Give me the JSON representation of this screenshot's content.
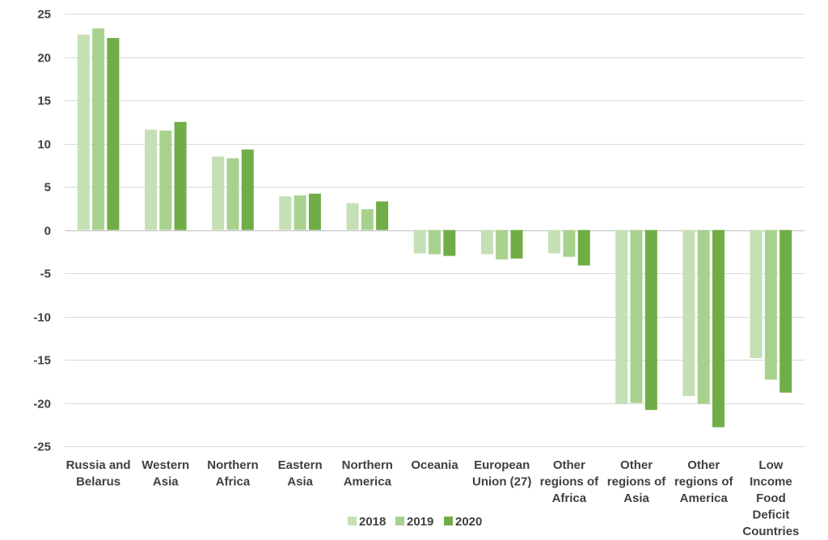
{
  "chart_data": {
    "type": "bar",
    "title": "",
    "xlabel": "",
    "ylabel": "",
    "ylim": [
      -25,
      25
    ],
    "yticks": [
      25,
      20,
      15,
      10,
      5,
      0,
      -5,
      -10,
      -15,
      -20,
      -25
    ],
    "grid": true,
    "legend_position": "bottom",
    "categories": [
      [
        "Russia and",
        "Belarus"
      ],
      [
        "Western",
        "Asia"
      ],
      [
        "Northern",
        "Africa"
      ],
      [
        "Eastern",
        "Asia"
      ],
      [
        "Northern",
        "America"
      ],
      [
        "Oceania"
      ],
      [
        "European",
        "Union (27)"
      ],
      [
        "Other",
        "regions of",
        "Africa"
      ],
      [
        "Other",
        "regions of",
        "Asia"
      ],
      [
        "Other",
        "regions of",
        "America"
      ],
      [
        "Low",
        "Income",
        "Food",
        "Deficit",
        "Countries"
      ]
    ],
    "series": [
      {
        "name": "2018",
        "color": "#c5e0b4",
        "values": [
          22.6,
          11.6,
          8.5,
          3.9,
          3.1,
          -2.7,
          -2.8,
          -2.7,
          -20.1,
          -19.2,
          -14.8
        ]
      },
      {
        "name": "2019",
        "color": "#a9d18e",
        "values": [
          23.3,
          11.5,
          8.3,
          4.0,
          2.4,
          -2.8,
          -3.4,
          -3.1,
          -20.0,
          -20.1,
          -17.3
        ]
      },
      {
        "name": "2020",
        "color": "#70ad47",
        "values": [
          22.2,
          12.5,
          9.3,
          4.2,
          3.3,
          -3.0,
          -3.3,
          -4.1,
          -20.8,
          -22.8,
          -18.8
        ]
      }
    ]
  }
}
